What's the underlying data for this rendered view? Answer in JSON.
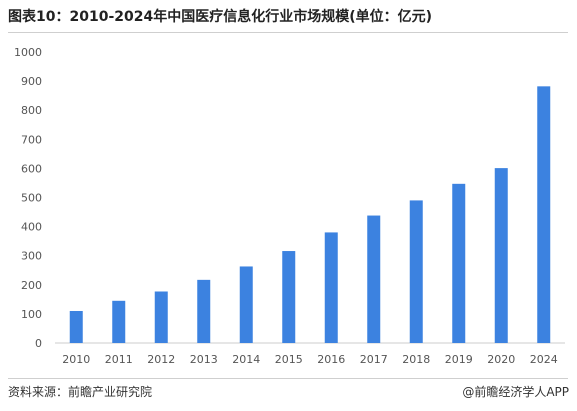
{
  "title": "图表10：2010-2024年中国医疗信息化行业市场规模(单位：亿元)",
  "footer": {
    "source": "资料来源：前瞻产业研究院",
    "brand": "@前瞻经济学人APP"
  },
  "colors": {
    "bar": "#3c82e0",
    "axis": "#cccccc",
    "text": "#555555"
  },
  "chart_data": {
    "type": "bar",
    "title": "图表10：2010-2024年中国医疗信息化行业市场规模(单位：亿元)",
    "categories": [
      "2010",
      "2011",
      "2012",
      "2013",
      "2014",
      "2015",
      "2016",
      "2017",
      "2018",
      "2019",
      "2020",
      "2024"
    ],
    "values": [
      110,
      145,
      177,
      217,
      263,
      316,
      380,
      438,
      490,
      547,
      601,
      882
    ],
    "ylim": [
      0,
      1000
    ],
    "yticks": [
      0,
      100,
      200,
      300,
      400,
      500,
      600,
      700,
      800,
      900,
      1000
    ],
    "grid": false,
    "xlabel": "",
    "ylabel": ""
  }
}
